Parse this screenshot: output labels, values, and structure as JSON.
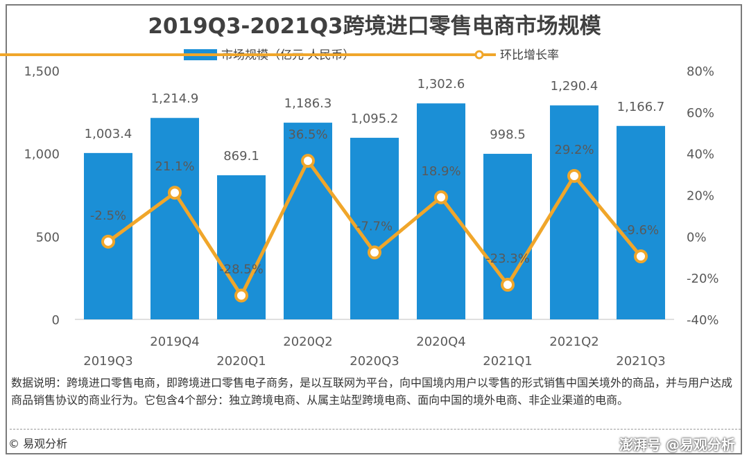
{
  "chart_data": {
    "type": "bar+line",
    "title": "2019Q3-2021Q3跨境进口零售电商市场规模",
    "categories": [
      "2019Q3",
      "2019Q4",
      "2020Q1",
      "2020Q2",
      "2020Q3",
      "2020Q4",
      "2021Q1",
      "2021Q2",
      "2021Q3"
    ],
    "series": [
      {
        "name": "市场规模（亿元 人民币）",
        "type": "bar",
        "axis": "left",
        "values": [
          1003.4,
          1214.9,
          869.1,
          1186.3,
          1095.2,
          1302.6,
          998.5,
          1290.4,
          1166.7
        ],
        "labels": [
          "1,003.4",
          "1,214.9",
          "869.1",
          "1,186.3",
          "1,095.2",
          "1,302.6",
          "998.5",
          "1,290.4",
          "1,166.7"
        ]
      },
      {
        "name": "环比增长率",
        "type": "line",
        "axis": "right",
        "values": [
          -2.5,
          21.1,
          -28.5,
          36.5,
          -7.7,
          18.9,
          -23.3,
          29.2,
          -9.6
        ],
        "labels": [
          "-2.5%",
          "21.1%",
          "-28.5%",
          "36.5%",
          "-7.7%",
          "18.9%",
          "-23.3%",
          "29.2%",
          "-9.6%"
        ]
      }
    ],
    "y_left": {
      "ylim": [
        0,
        1500
      ],
      "ticks": [
        0,
        500,
        1000,
        1500
      ],
      "tick_labels": [
        "0",
        "500",
        "1,000",
        "1,500"
      ]
    },
    "y_right": {
      "ylim": [
        -40,
        80
      ],
      "ticks": [
        -40,
        -20,
        0,
        20,
        40,
        60,
        80
      ],
      "tick_labels": [
        "-40%",
        "-20%",
        "0%",
        "20%",
        "40%",
        "60%",
        "80%"
      ]
    },
    "legend": "top-center",
    "grid": false
  },
  "colors": {
    "bar": "#1b8fd6",
    "line": "#f0a62a",
    "marker_fill": "#ffffff",
    "text": "#595959"
  },
  "note": "数据说明：跨境进口零售电商，即跨境进口零售电子商务，是以互联网为平台，向中国境内用户以零售的形式销售中国关境外的商品，并与用户达成商品销售协议的商业行为。它包含4个部分：独立跨境电商、从属主站型跨境电商、面向中国的境外电商、非企业渠道的电商。",
  "footer": "© 易观分析",
  "watermark": "澎湃号 @易观分析"
}
